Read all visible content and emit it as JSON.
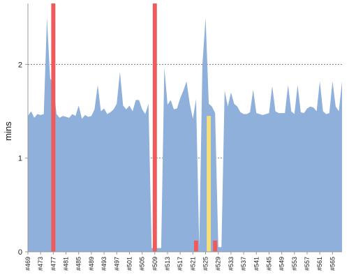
{
  "chart_data": {
    "type": "area",
    "ylabel": "mins",
    "ylim": [
      0,
      2.65
    ],
    "yticks": [
      0,
      1,
      2
    ],
    "grid": "horizontal dashed",
    "x_start": 469,
    "x_label_step": 4,
    "x_label_prefix": "#",
    "x": [
      469,
      470,
      471,
      472,
      473,
      474,
      475,
      476,
      477,
      478,
      479,
      480,
      481,
      482,
      483,
      484,
      485,
      486,
      487,
      488,
      489,
      490,
      491,
      492,
      493,
      494,
      495,
      496,
      497,
      498,
      499,
      500,
      501,
      502,
      503,
      504,
      505,
      506,
      507,
      508,
      509,
      510,
      511,
      512,
      513,
      514,
      515,
      516,
      517,
      518,
      519,
      520,
      521,
      522,
      523,
      524,
      525,
      526,
      527,
      528,
      529,
      530,
      531,
      532,
      533,
      534,
      535,
      536,
      537,
      538,
      539,
      540,
      541,
      542,
      543,
      544,
      545,
      546,
      547,
      548,
      549,
      550,
      551,
      552,
      553,
      554,
      555,
      556,
      557,
      558,
      559,
      560,
      561,
      562,
      563,
      564,
      565,
      566,
      567,
      568
    ],
    "x_labels": [
      "#469",
      "#473",
      "#477",
      "#481",
      "#485",
      "#489",
      "#493",
      "#497",
      "#501",
      "#505",
      "#509",
      "#513",
      "#517",
      "#521",
      "#525",
      "#529",
      "#533",
      "#537",
      "#541",
      "#545",
      "#549",
      "#553",
      "#557",
      "#561",
      "#565"
    ],
    "series": [
      {
        "values": [
          1.45,
          1.5,
          1.43,
          1.47,
          1.46,
          1.47,
          2.5,
          1.85,
          1.8,
          1.47,
          1.43,
          1.45,
          1.44,
          1.43,
          1.47,
          1.45,
          1.56,
          1.42,
          1.46,
          1.44,
          1.45,
          1.52,
          1.78,
          1.5,
          1.53,
          1.47,
          1.49,
          1.52,
          1.58,
          1.92,
          1.56,
          1.52,
          1.56,
          1.5,
          1.62,
          1.62,
          1.52,
          1.47,
          1.58,
          0.04,
          0.04,
          0.04,
          0.04,
          1.97,
          1.57,
          1.62,
          1.52,
          1.53,
          1.64,
          1.72,
          1.82,
          1.58,
          1.42,
          1.63,
          0.05,
          2.0,
          2.5,
          1.58,
          1.55,
          1.48,
          0.05,
          0.05,
          1.72,
          1.55,
          1.7,
          1.58,
          1.55,
          1.49,
          1.47,
          1.47,
          1.49,
          1.73,
          1.48,
          1.47,
          1.46,
          1.47,
          1.48,
          1.77,
          1.5,
          1.48,
          1.48,
          1.48,
          1.78,
          1.5,
          1.47,
          1.78,
          1.49,
          1.48,
          1.53,
          1.55,
          1.54,
          1.5,
          1.82,
          1.5,
          1.47,
          1.48,
          1.82,
          1.55,
          1.5,
          1.82
        ],
        "color": "#8eb0db"
      }
    ],
    "highlights": [
      {
        "x": 477,
        "value": 2.65,
        "color": "#f05a5a"
      },
      {
        "x": 509,
        "value": 2.65,
        "color": "#f05a5a"
      },
      {
        "x": 522,
        "value": 0.12,
        "color": "#f05a5a"
      },
      {
        "x": 526,
        "value": 1.45,
        "color": "#f3e07a"
      },
      {
        "x": 528,
        "value": 0.12,
        "color": "#f05a5a"
      }
    ],
    "colors": {
      "area": "#8eb0db",
      "failed": "#f05a5a",
      "unstable": "#f3e07a",
      "axis": "#999999",
      "grid": "#666666"
    }
  }
}
